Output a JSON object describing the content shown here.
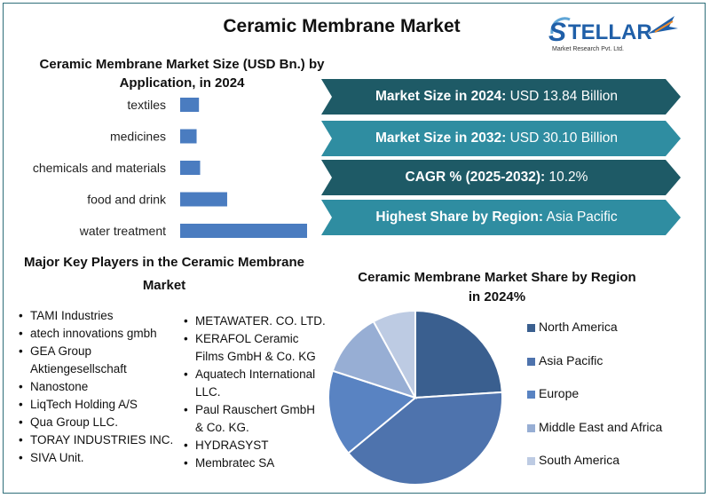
{
  "title": "Ceramic Membrane Market",
  "logo": {
    "name": "STELLAR",
    "subtitle": "Market Research Pvt. Ltd.",
    "colors": {
      "blue": "#1f5fa8",
      "light": "#5fa5d6",
      "arrow": "#f28c28"
    }
  },
  "highlights": [
    {
      "label": "Market Size in 2024:",
      "value": "USD 13.84 Billion",
      "color": "#1e5a66"
    },
    {
      "label": "Market Size in 2032:",
      "value": "USD 30.10 Billion",
      "color": "#2f8da1"
    },
    {
      "label": "CAGR % (2025-2032):",
      "value": "10.2%",
      "color": "#1e5a66"
    },
    {
      "label": "Highest Share by Region:",
      "value": "Asia Pacific",
      "color": "#2f8da1"
    }
  ],
  "players": {
    "title": "Major Key Players in the Ceramic Membrane Market",
    "left": [
      "TAMI Industries",
      "atech innovations gmbh",
      "GEA Group Aktiengesellschaft",
      "Nanostone",
      "LiqTech Holding A/S",
      "Qua Group LLC.",
      "TORAY INDUSTRIES INC.",
      "SIVA Unit."
    ],
    "right": [
      "METAWATER. CO. LTD.",
      "KERAFOL Ceramic Films GmbH & Co. KG",
      "Aquatech International LLC.",
      "Paul Rauschert GmbH & Co. KG.",
      "HYDRASYST",
      "Membratec SA"
    ]
  },
  "chart_data": [
    {
      "type": "bar",
      "orientation": "horizontal",
      "title": "Ceramic Membrane Market Size (USD Bn.) by Application, in 2024",
      "categories": [
        "textiles",
        "medicines",
        "chemicals and materials",
        "food and drink",
        "water treatment"
      ],
      "values": [
        0.8,
        0.7,
        0.85,
        2.0,
        5.4
      ],
      "xlim": [
        0,
        5.4
      ],
      "grid": false,
      "color": "#4a7cc0"
    },
    {
      "type": "pie",
      "title": "Ceramic Membrane Market Share by Region in 2024%",
      "categories": [
        "North America",
        "Asia Pacific",
        "Europe",
        "Middle East and Africa",
        "South America"
      ],
      "values": [
        24,
        40,
        16,
        12,
        8
      ],
      "colors": [
        "#3a5f8f",
        "#4e73ad",
        "#5983c2",
        "#97aed4",
        "#bdcbe3"
      ],
      "legend": "right"
    }
  ]
}
